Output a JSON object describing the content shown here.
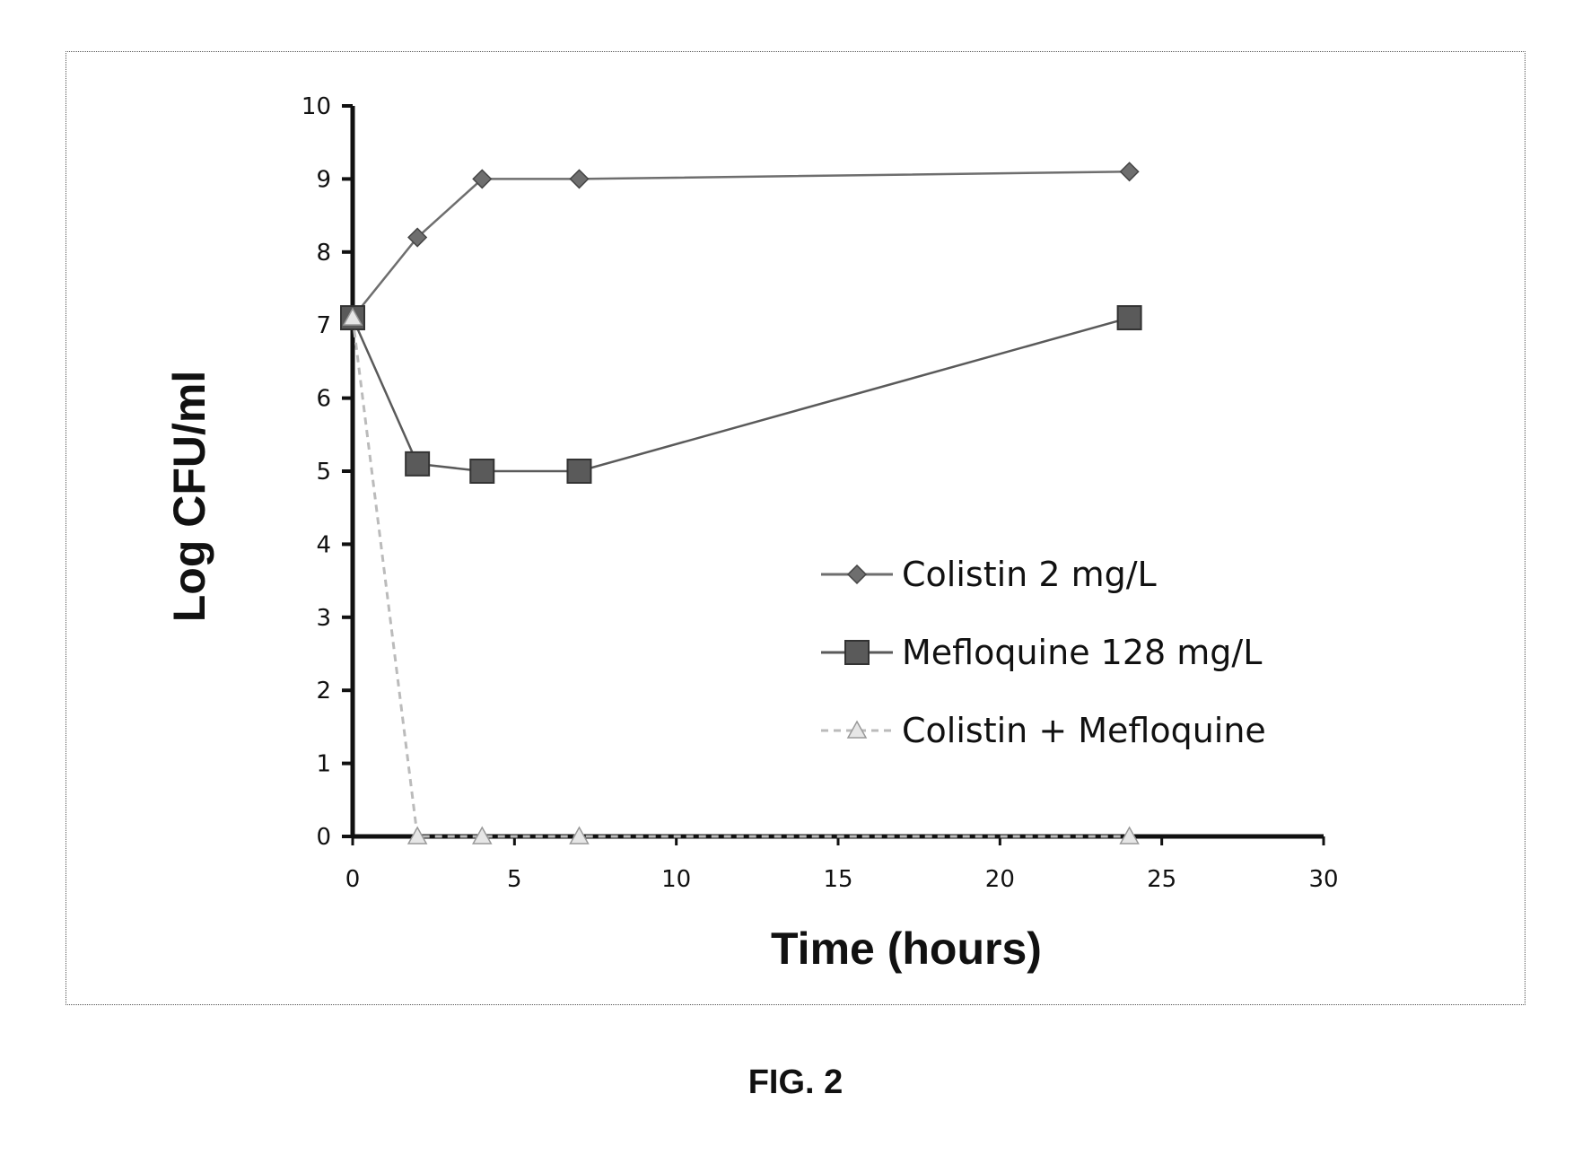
{
  "caption": "FIG. 2",
  "chart_data": {
    "type": "line",
    "xlabel": "Time (hours)",
    "ylabel": "Log CFU/ml",
    "xlim": [
      0,
      30
    ],
    "ylim": [
      0,
      10
    ],
    "xticks": [
      "0",
      "5",
      "10",
      "15",
      "20",
      "25",
      "30"
    ],
    "yticks": [
      "0",
      "1",
      "2",
      "3",
      "4",
      "5",
      "6",
      "7",
      "8",
      "9",
      "10"
    ],
    "grid": false,
    "legend_position": "right",
    "series": [
      {
        "name": "Colistin 2 mg/L",
        "marker": "diamond",
        "color": "#6e6e6e",
        "x": [
          0,
          2,
          4,
          7,
          24
        ],
        "y": [
          7.1,
          8.2,
          9.0,
          9.0,
          9.1
        ]
      },
      {
        "name": "Mefloquine 128 mg/L",
        "marker": "square",
        "color": "#5a5a5a",
        "x": [
          0,
          2,
          4,
          7,
          24
        ],
        "y": [
          7.1,
          5.1,
          5.0,
          5.0,
          7.1
        ]
      },
      {
        "name": "Colistin + Mefloquine",
        "marker": "triangle",
        "color": "#bbbbbb",
        "dashed": true,
        "x": [
          0,
          2,
          4,
          7,
          24
        ],
        "y": [
          7.1,
          0,
          0,
          0,
          0
        ]
      }
    ]
  }
}
